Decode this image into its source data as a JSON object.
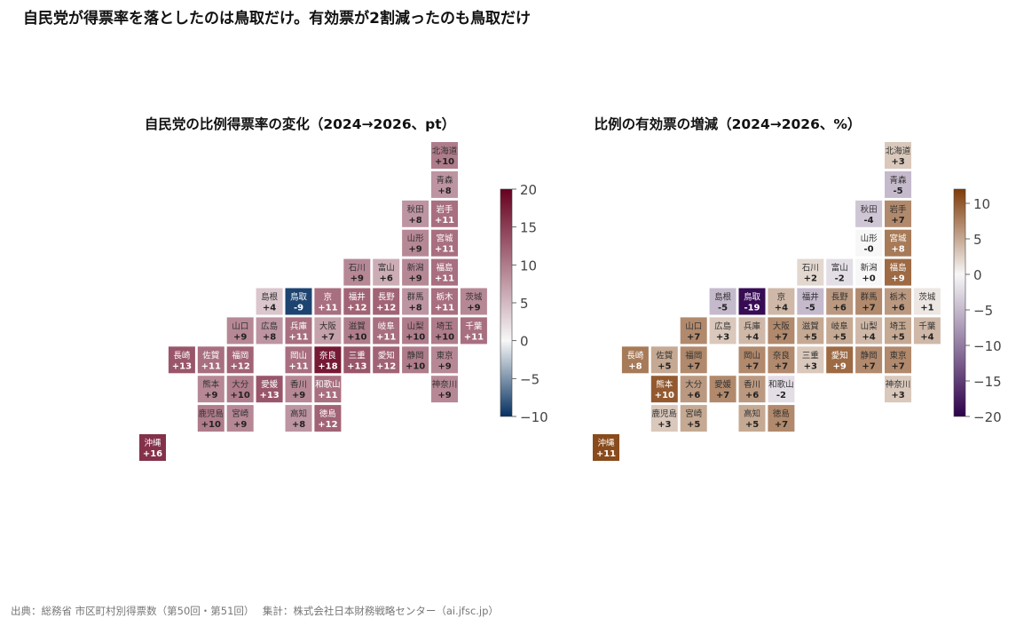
{
  "page": {
    "title": "自民党が得票率を落としたのは鳥取だけ。有効票が2割減ったのも鳥取だけ",
    "source": "出典：総務省 市区町村別得票数（第50回・第51回）　 集計：株式会社日本財務戦略センター（ai.jfsc.jp）"
  },
  "chart_data": [
    {
      "type": "heatmap",
      "title": "自民党の比例得票率の変化（2024→2026、pt）",
      "colormap": "RdBu_r (diverging, centered at 0)",
      "colors": {
        "low": "#053061",
        "mid": "#f7f7f7",
        "high": "#67001f"
      },
      "colorbar": {
        "range": [
          -10,
          20
        ],
        "ticks": [
          20,
          15,
          10,
          5,
          0,
          -5,
          -10
        ],
        "tick_labels": [
          "20",
          "15",
          "10",
          "5",
          "0",
          "−5",
          "−10"
        ]
      },
      "cells": [
        {
          "name": "北海道",
          "value": 10,
          "label": "+10"
        },
        {
          "name": "青森",
          "value": 8,
          "label": "+8"
        },
        {
          "name": "秋田",
          "value": 8,
          "label": "+8"
        },
        {
          "name": "岩手",
          "value": 11,
          "label": "+11"
        },
        {
          "name": "山形",
          "value": 9,
          "label": "+9"
        },
        {
          "name": "宮城",
          "value": 11,
          "label": "+11"
        },
        {
          "name": "石川",
          "value": 9,
          "label": "+9"
        },
        {
          "name": "富山",
          "value": 6,
          "label": "+6"
        },
        {
          "name": "新潟",
          "value": 9,
          "label": "+9"
        },
        {
          "name": "福島",
          "value": 11,
          "label": "+11"
        },
        {
          "name": "島根",
          "value": 4,
          "label": "+4"
        },
        {
          "name": "鳥取",
          "value": -9,
          "label": "-9"
        },
        {
          "name": "京",
          "value": 11,
          "label": "+11"
        },
        {
          "name": "福井",
          "value": 12,
          "label": "+12"
        },
        {
          "name": "長野",
          "value": 12,
          "label": "+12"
        },
        {
          "name": "群馬",
          "value": 8,
          "label": "+8"
        },
        {
          "name": "栃木",
          "value": 11,
          "label": "+11"
        },
        {
          "name": "茨城",
          "value": 9,
          "label": "+9"
        },
        {
          "name": "山口",
          "value": 9,
          "label": "+9"
        },
        {
          "name": "広島",
          "value": 8,
          "label": "+8"
        },
        {
          "name": "兵庫",
          "value": 11,
          "label": "+11"
        },
        {
          "name": "大阪",
          "value": 7,
          "label": "+7"
        },
        {
          "name": "滋賀",
          "value": 10,
          "label": "+10"
        },
        {
          "name": "岐阜",
          "value": 11,
          "label": "+11"
        },
        {
          "name": "山梨",
          "value": 10,
          "label": "+10"
        },
        {
          "name": "埼玉",
          "value": 10,
          "label": "+10"
        },
        {
          "name": "千葉",
          "value": 11,
          "label": "+11"
        },
        {
          "name": "長崎",
          "value": 13,
          "label": "+13"
        },
        {
          "name": "佐賀",
          "value": 11,
          "label": "+11"
        },
        {
          "name": "福岡",
          "value": 12,
          "label": "+12"
        },
        {
          "name": "岡山",
          "value": 11,
          "label": "+11"
        },
        {
          "name": "奈良",
          "value": 18,
          "label": "+18"
        },
        {
          "name": "三重",
          "value": 13,
          "label": "+13"
        },
        {
          "name": "愛知",
          "value": 12,
          "label": "+12"
        },
        {
          "name": "静岡",
          "value": 10,
          "label": "+10"
        },
        {
          "name": "東京",
          "value": 9,
          "label": "+9"
        },
        {
          "name": "熊本",
          "value": 9,
          "label": "+9"
        },
        {
          "name": "大分",
          "value": 10,
          "label": "+10"
        },
        {
          "name": "愛媛",
          "value": 13,
          "label": "+13"
        },
        {
          "name": "香川",
          "value": 9,
          "label": "+9"
        },
        {
          "name": "和歌山",
          "value": 11,
          "label": "+11"
        },
        {
          "name": "神奈川",
          "value": 9,
          "label": "+9"
        },
        {
          "name": "鹿児島",
          "value": 10,
          "label": "+10"
        },
        {
          "name": "宮崎",
          "value": 9,
          "label": "+9"
        },
        {
          "name": "高知",
          "value": 8,
          "label": "+8"
        },
        {
          "name": "徳島",
          "value": 12,
          "label": "+12"
        },
        {
          "name": "沖縄",
          "value": 16,
          "label": "+16"
        }
      ]
    },
    {
      "type": "heatmap",
      "title": "比例の有効票の増減（2024→2026、%）",
      "colormap": "PuOr (diverging, centered at 0)",
      "colors": {
        "low": "#2d004b",
        "mid": "#f7f7f7",
        "high": "#7f3b08"
      },
      "colorbar": {
        "range": [
          -20,
          12
        ],
        "ticks": [
          10,
          5,
          0,
          -5,
          -10,
          -15,
          -20
        ],
        "tick_labels": [
          "10",
          "5",
          "0",
          "−5",
          "−10",
          "−15",
          "−20"
        ]
      },
      "cells": [
        {
          "name": "北海道",
          "value": 3,
          "label": "+3"
        },
        {
          "name": "青森",
          "value": -5,
          "label": "-5"
        },
        {
          "name": "秋田",
          "value": -4,
          "label": "-4"
        },
        {
          "name": "岩手",
          "value": 7,
          "label": "+7"
        },
        {
          "name": "山形",
          "value": 0,
          "label": "-0"
        },
        {
          "name": "宮城",
          "value": 8,
          "label": "+8"
        },
        {
          "name": "石川",
          "value": 2,
          "label": "+2"
        },
        {
          "name": "富山",
          "value": -2,
          "label": "-2"
        },
        {
          "name": "新潟",
          "value": 0,
          "label": "+0"
        },
        {
          "name": "福島",
          "value": 9,
          "label": "+9"
        },
        {
          "name": "島根",
          "value": -5,
          "label": "-5"
        },
        {
          "name": "鳥取",
          "value": -19,
          "label": "-19"
        },
        {
          "name": "京",
          "value": 4,
          "label": "+4"
        },
        {
          "name": "福井",
          "value": -5,
          "label": "-5"
        },
        {
          "name": "長野",
          "value": 6,
          "label": "+6"
        },
        {
          "name": "群馬",
          "value": 7,
          "label": "+7"
        },
        {
          "name": "栃木",
          "value": 6,
          "label": "+6"
        },
        {
          "name": "茨城",
          "value": 1,
          "label": "+1"
        },
        {
          "name": "山口",
          "value": 7,
          "label": "+7"
        },
        {
          "name": "広島",
          "value": 3,
          "label": "+3"
        },
        {
          "name": "兵庫",
          "value": 4,
          "label": "+4"
        },
        {
          "name": "大阪",
          "value": 7,
          "label": "+7"
        },
        {
          "name": "滋賀",
          "value": 5,
          "label": "+5"
        },
        {
          "name": "岐阜",
          "value": 5,
          "label": "+5"
        },
        {
          "name": "山梨",
          "value": 4,
          "label": "+4"
        },
        {
          "name": "埼玉",
          "value": 5,
          "label": "+5"
        },
        {
          "name": "千葉",
          "value": 4,
          "label": "+4"
        },
        {
          "name": "長崎",
          "value": 8,
          "label": "+8"
        },
        {
          "name": "佐賀",
          "value": 5,
          "label": "+5"
        },
        {
          "name": "福岡",
          "value": 7,
          "label": "+7"
        },
        {
          "name": "岡山",
          "value": 7,
          "label": "+7"
        },
        {
          "name": "奈良",
          "value": 7,
          "label": "+7"
        },
        {
          "name": "三重",
          "value": 3,
          "label": "+3"
        },
        {
          "name": "愛知",
          "value": 9,
          "label": "+9"
        },
        {
          "name": "静岡",
          "value": 7,
          "label": "+7"
        },
        {
          "name": "東京",
          "value": 7,
          "label": "+7"
        },
        {
          "name": "熊本",
          "value": 10,
          "label": "+10"
        },
        {
          "name": "大分",
          "value": 6,
          "label": "+6"
        },
        {
          "name": "愛媛",
          "value": 7,
          "label": "+7"
        },
        {
          "name": "香川",
          "value": 6,
          "label": "+6"
        },
        {
          "name": "和歌山",
          "value": -2,
          "label": "-2"
        },
        {
          "name": "神奈川",
          "value": 3,
          "label": "+3"
        },
        {
          "name": "鹿児島",
          "value": 3,
          "label": "+3"
        },
        {
          "name": "宮崎",
          "value": 5,
          "label": "+5"
        },
        {
          "name": "高知",
          "value": 5,
          "label": "+5"
        },
        {
          "name": "徳島",
          "value": 7,
          "label": "+7"
        },
        {
          "name": "沖縄",
          "value": 11,
          "label": "+11"
        }
      ]
    }
  ]
}
